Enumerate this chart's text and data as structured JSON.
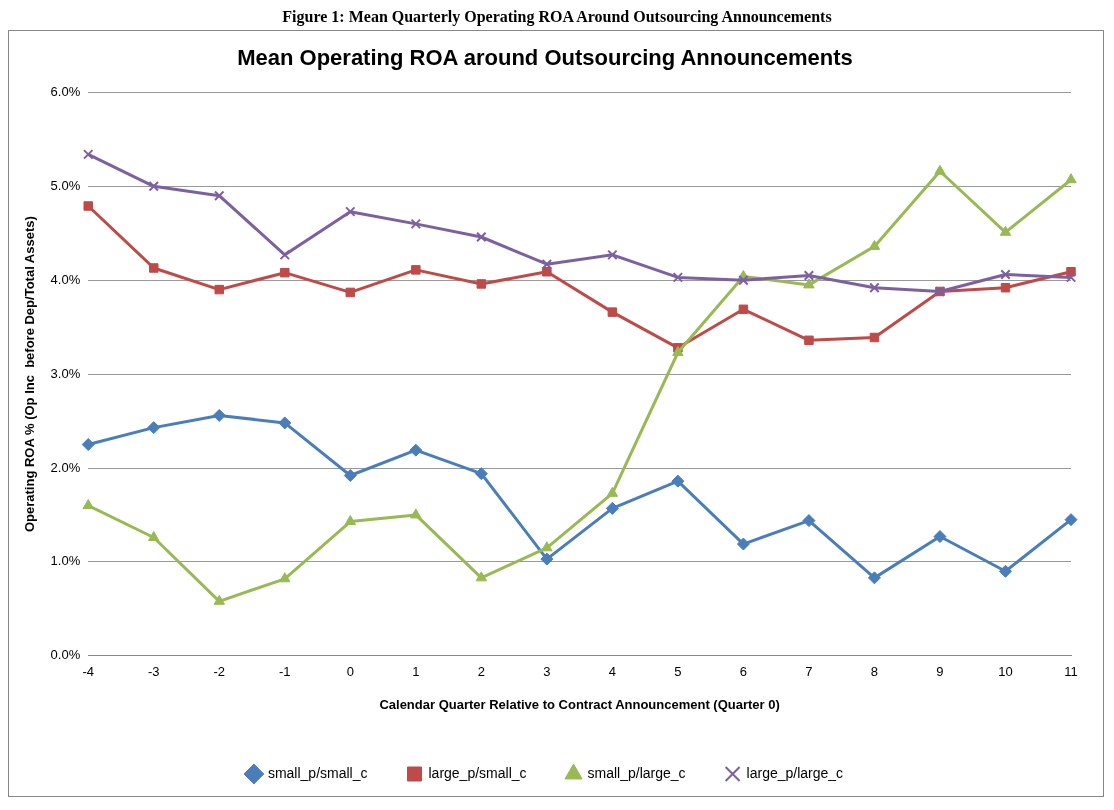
{
  "chart_data": {
    "type": "line",
    "title": "Mean Operating ROA around Outsourcing Announcements",
    "annotations": [
      "Figure 1: Mean Quarterly Operating ROA Around Outsourcing Announcements"
    ],
    "xlabel": "Calendar Quarter Relative to Contract Announcement (Quarter 0)",
    "ylabel": "Operating ROA % (Op Inc  before Dep/Total Assets)",
    "categories": [
      "-4",
      "-3",
      "-2",
      "-1",
      "0",
      "1",
      "2",
      "3",
      "4",
      "5",
      "6",
      "7",
      "8",
      "9",
      "10",
      "11"
    ],
    "series": [
      {
        "name": "small_p/small_c",
        "color": "#4a7ebb",
        "marker": "diamond",
        "values": [
          2.25,
          2.43,
          2.56,
          2.48,
          1.92,
          2.19,
          1.94,
          1.03,
          1.57,
          1.86,
          1.19,
          1.44,
          0.83,
          1.27,
          0.9,
          1.45
        ]
      },
      {
        "name": "large_p/small_c",
        "color": "#be4b48",
        "marker": "square",
        "values": [
          4.79,
          4.13,
          3.9,
          4.08,
          3.87,
          4.11,
          3.96,
          4.09,
          3.66,
          3.28,
          3.69,
          3.36,
          3.39,
          3.88,
          3.92,
          4.09
        ]
      },
      {
        "name": "small_p/large_c",
        "color": "#98b954",
        "marker": "triangle",
        "values": [
          1.6,
          1.26,
          0.58,
          0.82,
          1.43,
          1.5,
          0.83,
          1.15,
          1.73,
          3.23,
          4.04,
          3.95,
          4.36,
          5.16,
          4.51,
          5.07
        ]
      },
      {
        "name": "large_p/large_c",
        "color": "#7d60a0",
        "marker": "cross",
        "values": [
          5.34,
          5.0,
          4.9,
          4.27,
          4.73,
          4.6,
          4.46,
          4.17,
          4.27,
          4.03,
          4.0,
          4.05,
          3.92,
          3.88,
          4.06,
          4.03
        ]
      }
    ],
    "ylim": [
      0,
      6
    ],
    "yticks": [
      {
        "value": 0,
        "label": "0.0%"
      },
      {
        "value": 1,
        "label": "1.0%"
      },
      {
        "value": 2,
        "label": "2.0%"
      },
      {
        "value": 3,
        "label": "3.0%"
      },
      {
        "value": 4,
        "label": "4.0%"
      },
      {
        "value": 5,
        "label": "5.0%"
      },
      {
        "value": 6,
        "label": "6.0%"
      }
    ],
    "grid": "y",
    "legend": "bottom",
    "line_style": "solid"
  }
}
